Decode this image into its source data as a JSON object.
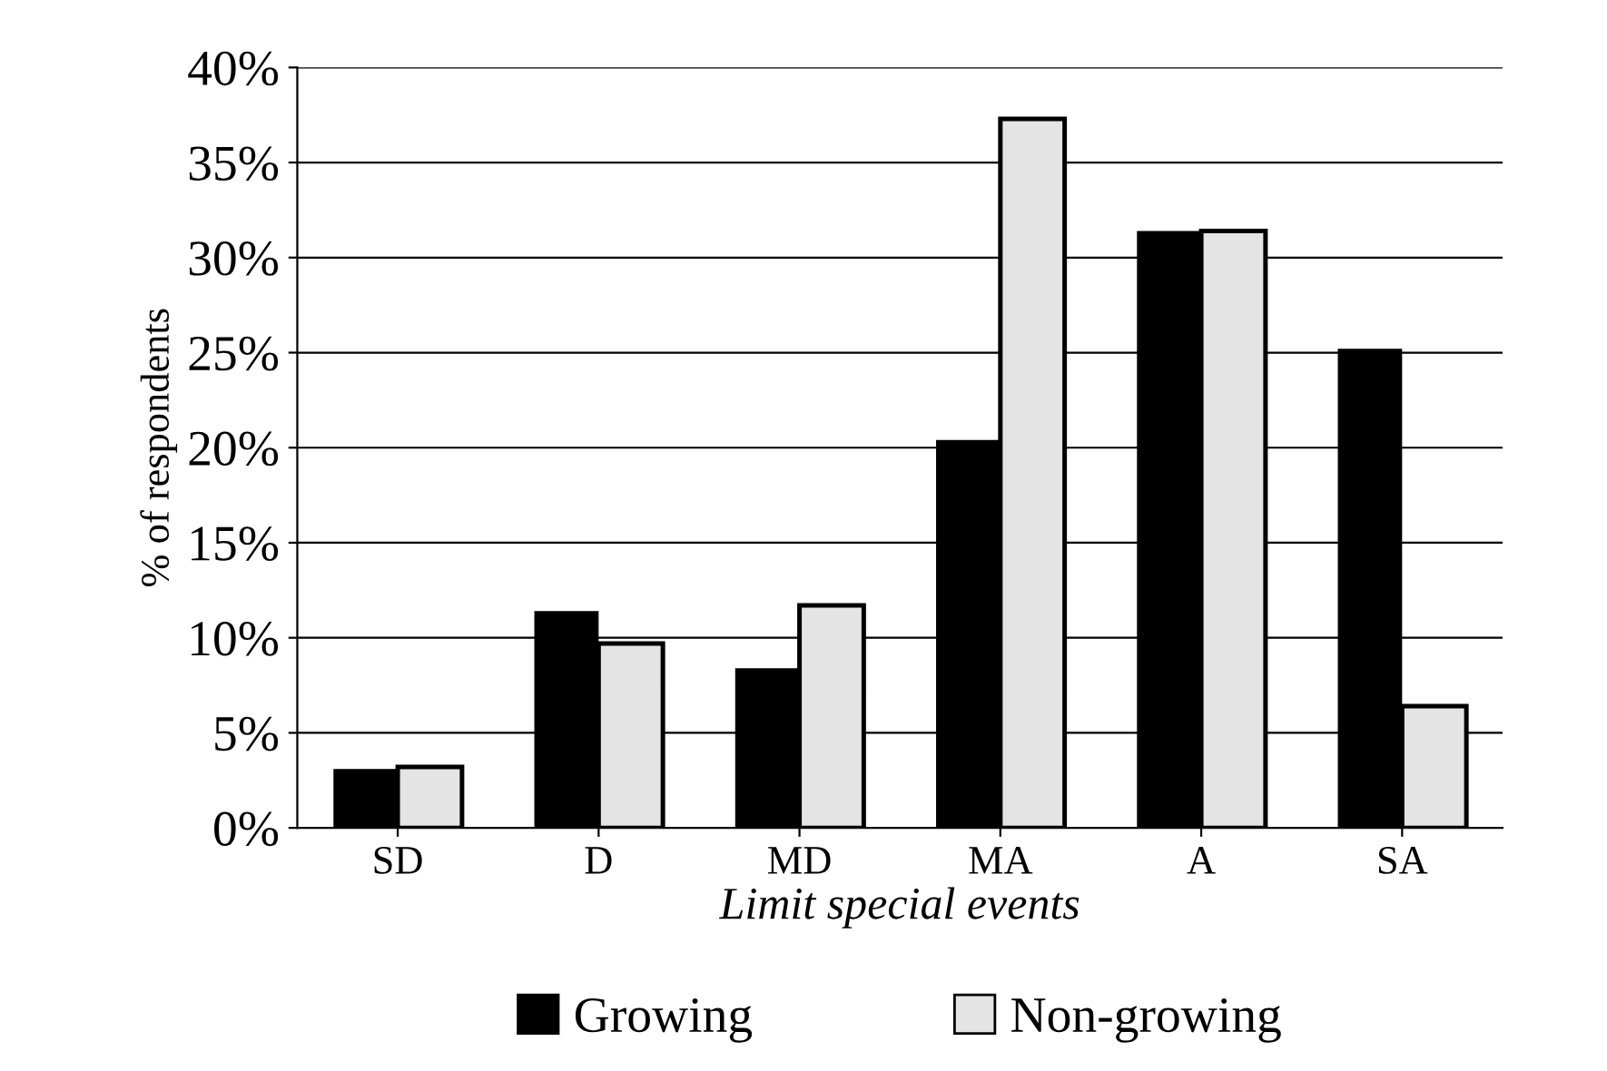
{
  "chart_data": {
    "type": "bar",
    "xlabel": "Limit special events",
    "ylabel": "% of respondents",
    "categories": [
      "SD",
      "D",
      "MD",
      "MA",
      "A",
      "SA"
    ],
    "series": [
      {
        "name": "Growing",
        "color": "#000000",
        "values": [
          3.1,
          11.4,
          8.4,
          20.4,
          31.4,
          25.2
        ]
      },
      {
        "name": "Non-growing",
        "color": "#e4e4e4",
        "values": [
          3.2,
          9.7,
          11.7,
          37.3,
          31.4,
          6.4
        ]
      }
    ],
    "ylim": [
      0,
      40
    ],
    "yticks": [
      {
        "value": 0,
        "label": "0%"
      },
      {
        "value": 5,
        "label": "5%"
      },
      {
        "value": 10,
        "label": "10%"
      },
      {
        "value": 15,
        "label": "15%"
      },
      {
        "value": 20,
        "label": "20%"
      },
      {
        "value": 25,
        "label": "25%"
      },
      {
        "value": 30,
        "label": "30%"
      },
      {
        "value": 35,
        "label": "35%"
      },
      {
        "value": 40,
        "label": "40%"
      }
    ],
    "grid": "y",
    "legend": "bottom"
  }
}
